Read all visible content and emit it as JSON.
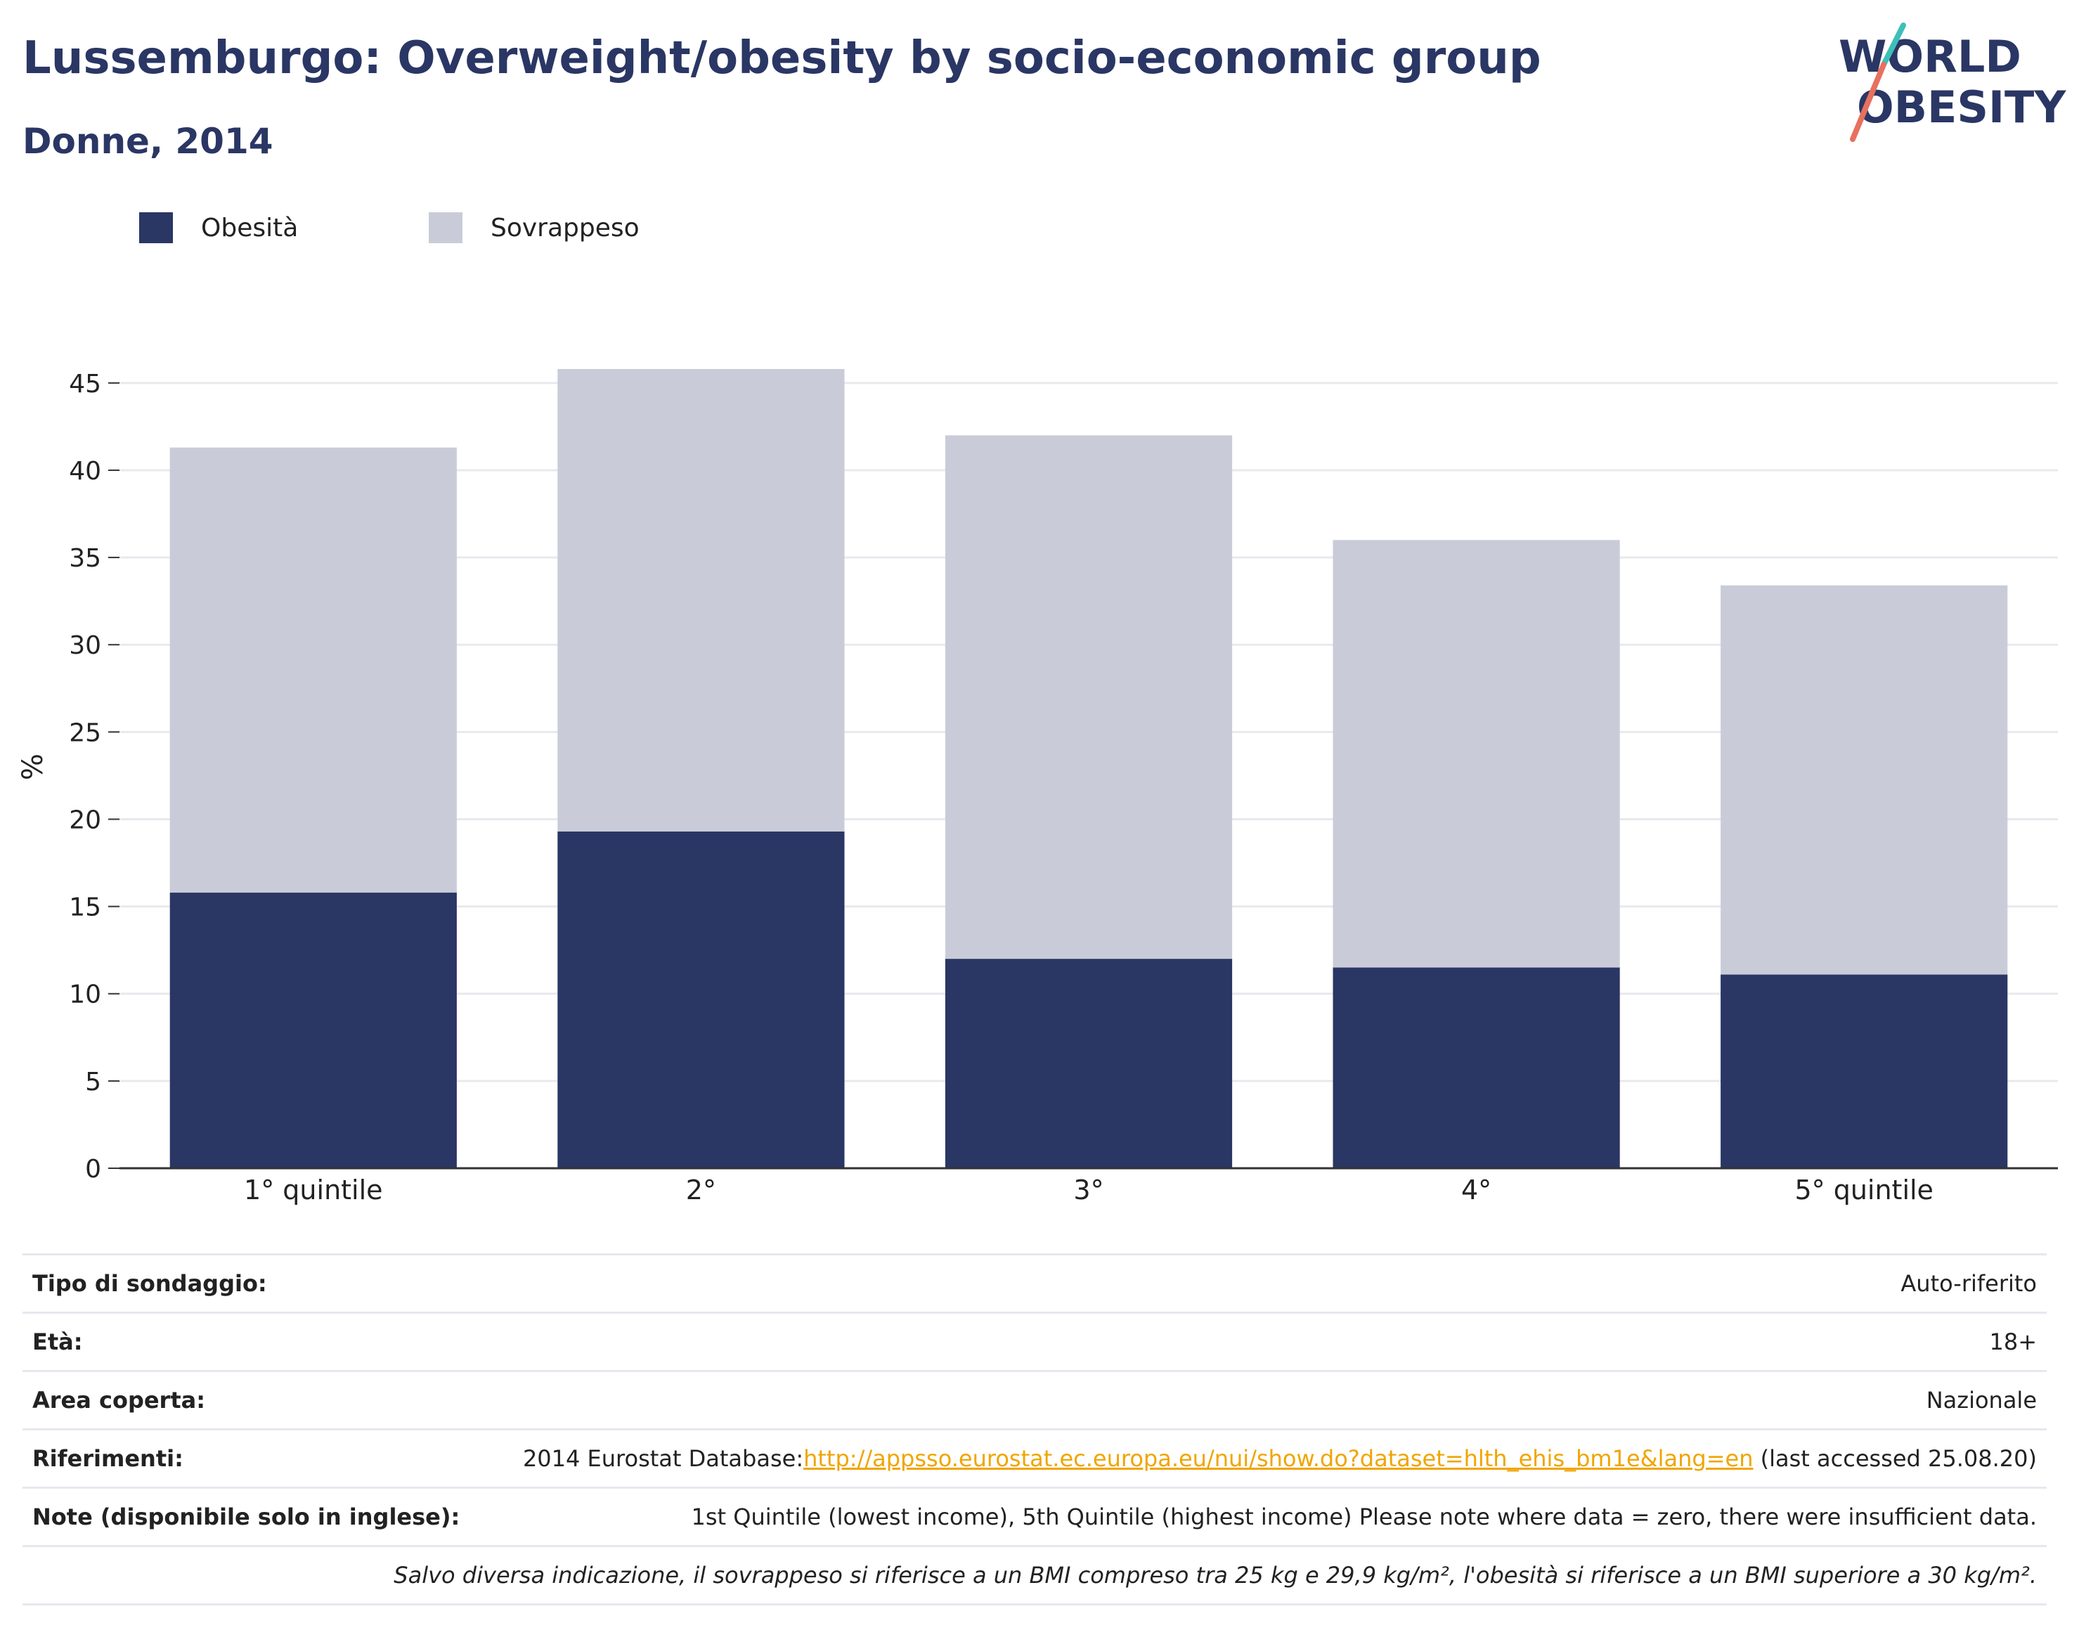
{
  "header": {
    "title": "Lussemburgo: Overweight/obesity by socio-economic group",
    "subtitle": "Donne, 2014"
  },
  "logo": {
    "line1": "WORLD",
    "line2": "OBESITY"
  },
  "legend": [
    {
      "label": "Obesità",
      "color": "#2a3664"
    },
    {
      "label": "Sovrappeso",
      "color": "#c9ccd8"
    }
  ],
  "chart_data": {
    "type": "bar",
    "stacked": true,
    "categories": [
      "1° quintile",
      "2°",
      "3°",
      "4°",
      "5° quintile"
    ],
    "series": [
      {
        "name": "Obesità",
        "color": "#2a3664",
        "values": [
          15.8,
          19.3,
          12.0,
          11.5,
          11.1
        ]
      },
      {
        "name": "Sovrappeso",
        "color": "#c9ccd8",
        "values": [
          25.5,
          26.5,
          30.0,
          24.5,
          22.3
        ]
      }
    ],
    "totals": [
      41.3,
      45.8,
      42.0,
      36.0,
      33.4
    ],
    "ylabel": "%",
    "xlabel": "",
    "ylim": [
      0,
      46
    ],
    "yticks": [
      0,
      5,
      10,
      15,
      20,
      25,
      30,
      35,
      40,
      45
    ],
    "grid": true,
    "legend_position": "top-left"
  },
  "info_table": {
    "survey_label": "Tipo di sondaggio:",
    "survey_value": "Auto-riferito",
    "age_label": "Età:",
    "age_value": "18+",
    "area_label": "Area coperta:",
    "area_value": "Nazionale",
    "refs_label": "Riferimenti:",
    "refs_prefix": "2014 Eurostat Database:",
    "refs_link": "http://appsso.eurostat.ec.europa.eu/nui/show.do?dataset=hlth_ehis_bm1e&lang=en",
    "refs_suffix": " (last accessed 25.08.20)",
    "notes_label": "Note (disponibile solo in inglese):",
    "notes_value": "1st Quintile (lowest income), 5th Quintile (highest income) Please note where data = zero, there were insufficient data.",
    "footnote": "Salvo diversa indicazione, il sovrappeso si riferisce a un BMI compreso tra 25 kg e 29,9 kg/m², l'obesità si riferisce a un BMI superiore a 30 kg/m²."
  }
}
